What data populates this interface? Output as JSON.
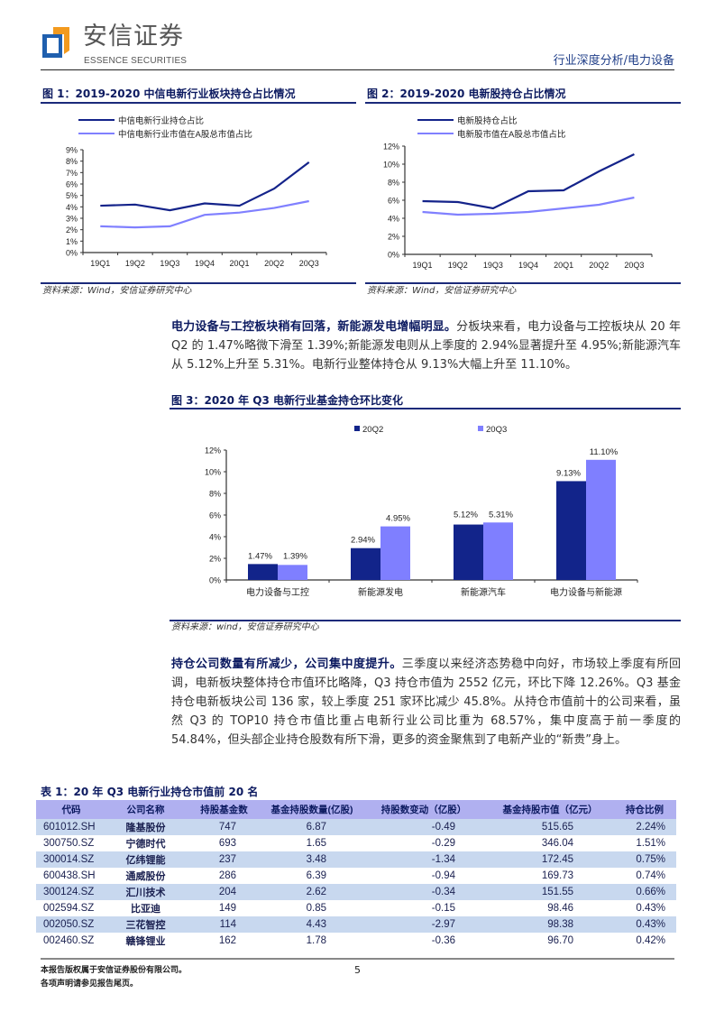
{
  "header": {
    "logo_cn": "安信证券",
    "logo_en": "ESSENCE SECURITIES",
    "section": "行业深度分析/电力设备",
    "colors": {
      "logo_blue": "#1f5fae",
      "logo_orange": "#f39a1e"
    }
  },
  "fig1": {
    "title": "图 1：2019-2020 中信电新行业板块持仓占比情况",
    "source": "资料来源：Wind，安信证券研究中心"
  },
  "fig2": {
    "title": "图 2：2019-2020 电新股持仓占比情况",
    "source": "资料来源：Wind，安信证券研究中心"
  },
  "fig3": {
    "title": "图 3：2020 年 Q3 电新行业基金持仓环比变化",
    "source": "资料来源：wind，安信证券研究中心"
  },
  "para1": {
    "lead": "电力设备与工控板块稍有回落，新能源发电增幅明显。",
    "body": "分板块来看，电力设备与工控板块从 20 年 Q2 的 1.47%略微下滑至 1.39%;新能源发电则从上季度的 2.94%显著提升至 4.95%;新能源汽车从 5.12%上升至 5.31%。电新行业整体持仓从 9.13%大幅上升至 11.10%。"
  },
  "para2": {
    "lead": "持仓公司数量有所减少，公司集中度提升。",
    "body": "三季度以来经济态势稳中向好，市场较上季度有所回调，电新板块整体持仓市值环比略降，Q3 持仓市值为 2552 亿元，环比下降 12.26%。Q3 基金持仓电新板块公司 136 家，较上季度 251 家环比减少 45.8%。从持仓市值前十的公司来看，虽然 Q3 的 TOP10 持仓市值比重占电新行业公司比重为 68.57%，集中度高于前一季度的 54.84%，但头部企业持仓股数有所下滑，更多的资金聚焦到了电新产业的“新贵”身上。"
  },
  "table": {
    "title": "表 1：20 年 Q3 电新行业持仓市值前 20 名",
    "headers": [
      "代码",
      "公司名称",
      "持股基金数",
      "基金持股数量(亿股)",
      "持股数变动（亿股）",
      "基金持股市值（亿元）",
      "持仓比例"
    ],
    "rows": [
      [
        "601012.SH",
        "隆基股份",
        "747",
        "6.87",
        "-0.49",
        "515.65",
        "2.24%"
      ],
      [
        "300750.SZ",
        "宁德时代",
        "693",
        "1.65",
        "-0.29",
        "346.04",
        "1.51%"
      ],
      [
        "300014.SZ",
        "亿纬锂能",
        "237",
        "3.48",
        "-1.34",
        "172.45",
        "0.75%"
      ],
      [
        "600438.SH",
        "通威股份",
        "286",
        "6.39",
        "-0.94",
        "169.73",
        "0.74%"
      ],
      [
        "300124.SZ",
        "汇川技术",
        "204",
        "2.62",
        "-0.34",
        "151.55",
        "0.66%"
      ],
      [
        "002594.SZ",
        "比亚迪",
        "149",
        "0.85",
        "-0.15",
        "98.46",
        "0.43%"
      ],
      [
        "002050.SZ",
        "三花智控",
        "114",
        "4.43",
        "-2.97",
        "98.38",
        "0.43%"
      ],
      [
        "002460.SZ",
        "赣锋锂业",
        "162",
        "1.78",
        "-0.36",
        "96.70",
        "0.42%"
      ]
    ]
  },
  "footer": {
    "line1": "本报告版权属于安信证券股份有限公司。",
    "line2": "各项声明请参见报告尾页。",
    "page": "5"
  },
  "chart_data": [
    {
      "type": "line",
      "categories": [
        "19Q1",
        "19Q2",
        "19Q3",
        "19Q4",
        "20Q1",
        "20Q2",
        "20Q3"
      ],
      "ylim": [
        0,
        9
      ],
      "yticks": [
        "0%",
        "1%",
        "2%",
        "3%",
        "4%",
        "5%",
        "6%",
        "7%",
        "8%",
        "9%"
      ],
      "legend": "top-left",
      "grid": false,
      "series": [
        {
          "name": "中信电新行业持仓占比",
          "color": "#14238a",
          "values": [
            4.1,
            4.2,
            3.7,
            4.3,
            4.1,
            5.6,
            7.9
          ]
        },
        {
          "name": "中信电新行业市值在A股总市值占比",
          "color": "#8080ff",
          "values": [
            2.3,
            2.2,
            2.3,
            3.3,
            3.5,
            3.9,
            4.5
          ]
        }
      ]
    },
    {
      "type": "line",
      "categories": [
        "19Q1",
        "19Q2",
        "19Q3",
        "19Q4",
        "20Q1",
        "20Q2",
        "20Q3"
      ],
      "ylim": [
        0,
        12
      ],
      "yticks": [
        "0%",
        "2%",
        "4%",
        "6%",
        "8%",
        "10%",
        "12%"
      ],
      "legend": "top-left",
      "grid": false,
      "series": [
        {
          "name": "电新股持仓占比",
          "color": "#14238a",
          "values": [
            5.9,
            5.8,
            5.1,
            7.0,
            7.1,
            9.2,
            11.1
          ]
        },
        {
          "name": "电新股市值在A股总市值占比",
          "color": "#8080ff",
          "values": [
            4.7,
            4.4,
            4.5,
            4.7,
            5.1,
            5.5,
            6.3
          ]
        }
      ]
    },
    {
      "type": "bar",
      "categories": [
        "电力设备与工控",
        "新能源发电",
        "新能源汽车",
        "电力设备与新能源"
      ],
      "ylim": [
        0,
        12
      ],
      "yticks": [
        "0%",
        "2%",
        "4%",
        "6%",
        "8%",
        "10%",
        "12%"
      ],
      "legend": "top",
      "grid": false,
      "series": [
        {
          "name": "20Q2",
          "color": "#12248a",
          "values": [
            1.47,
            2.94,
            5.12,
            9.13
          ],
          "labels": [
            "1.47%",
            "2.94%",
            "5.12%",
            "9.13%"
          ]
        },
        {
          "name": "20Q3",
          "color": "#7f7fff",
          "values": [
            1.39,
            4.95,
            5.31,
            11.1
          ],
          "labels": [
            "1.39%",
            "4.95%",
            "5.31%",
            "11.10%"
          ]
        }
      ]
    }
  ]
}
